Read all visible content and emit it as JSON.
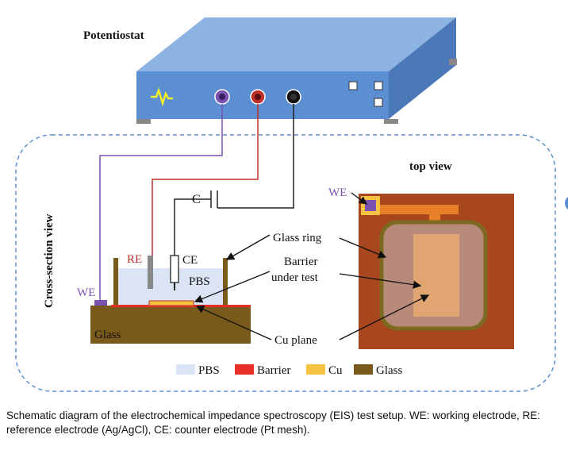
{
  "potentiostat": {
    "title": "Potentiostat",
    "color_top": "#8db3e2",
    "color_front": "#5b8fd1",
    "color_side": "#4a78b8"
  },
  "labels": {
    "cross_section": "Cross-section view",
    "top_view": "top view",
    "capacitor": "C",
    "re": "RE",
    "ce": "CE",
    "pbs_cell": "PBS",
    "we_left": "WE",
    "we_top": "WE",
    "glass_substrate": "Glass",
    "glass_ring": "Glass ring",
    "barrier_under_test": "Barrier\nunder test",
    "barrier_line1": "Barrier",
    "barrier_line2": "under test",
    "cu_plane": "Cu plane"
  },
  "legend": [
    {
      "label": "PBS",
      "color": "#dbe4f5"
    },
    {
      "label": "Barrier",
      "color": "#e8302a"
    },
    {
      "label": "Cu",
      "color": "#f5c242"
    },
    {
      "label": "Glass",
      "color": "#7a5a1a"
    }
  ],
  "colors": {
    "we_wire": "#7b52b0",
    "re_wire": "#c0302a",
    "ce_wire": "#222222",
    "dashed_border": "#5b8fd1",
    "top_view_bg": "#a8461d",
    "cu_orange": "#e87f2a",
    "ring_olive": "#7b6a1f",
    "inner_pink": "#b88a7a",
    "inner_tan": "#e0a570"
  },
  "caption": "Schematic diagram of the electrochemical impedance spectroscopy (EIS) test setup. WE: working electrode, RE: reference electrode (Ag/AgCl), CE: counter electrode (Pt mesh)."
}
